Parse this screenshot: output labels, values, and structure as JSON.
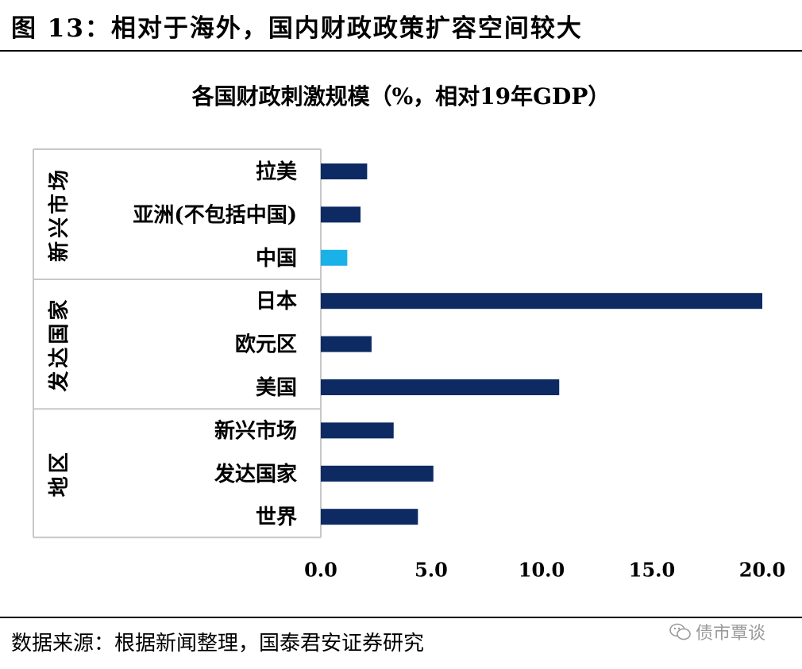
{
  "figure_title": "图 13：相对于海外，国内财政政策扩容空间较大",
  "source_note": "数据来源：根据新闻整理，国泰君安证券研究",
  "watermark": "债市覃谈",
  "colors": {
    "bar": "#0d2a63",
    "highlight": "#1ab0e8"
  },
  "chart_data": {
    "type": "bar",
    "orientation": "horizontal",
    "title": "各国财政刺激规模（%，相对19年GDP）",
    "groups": [
      {
        "name": "新兴市场",
        "categories": [
          "拉美",
          "亚洲(不包括中国)",
          "中国"
        ]
      },
      {
        "name": "发达国家",
        "categories": [
          "日本",
          "欧元区",
          "美国"
        ]
      },
      {
        "name": "地区",
        "categories": [
          "新兴市场",
          "发达国家",
          "世界"
        ]
      }
    ],
    "categories": [
      "拉美",
      "亚洲(不包括中国)",
      "中国",
      "日本",
      "欧元区",
      "美国",
      "新兴市场",
      "发达国家",
      "世界"
    ],
    "values": [
      2.1,
      1.8,
      1.2,
      20.0,
      2.3,
      10.8,
      3.3,
      5.1,
      4.4
    ],
    "highlight_category": "中国",
    "xlim": [
      0,
      20
    ],
    "xticks": [
      "0.0",
      "5.0",
      "10.0",
      "15.0",
      "20.0"
    ],
    "xtick_values": [
      0,
      5,
      10,
      15,
      20
    ],
    "grid": false
  }
}
